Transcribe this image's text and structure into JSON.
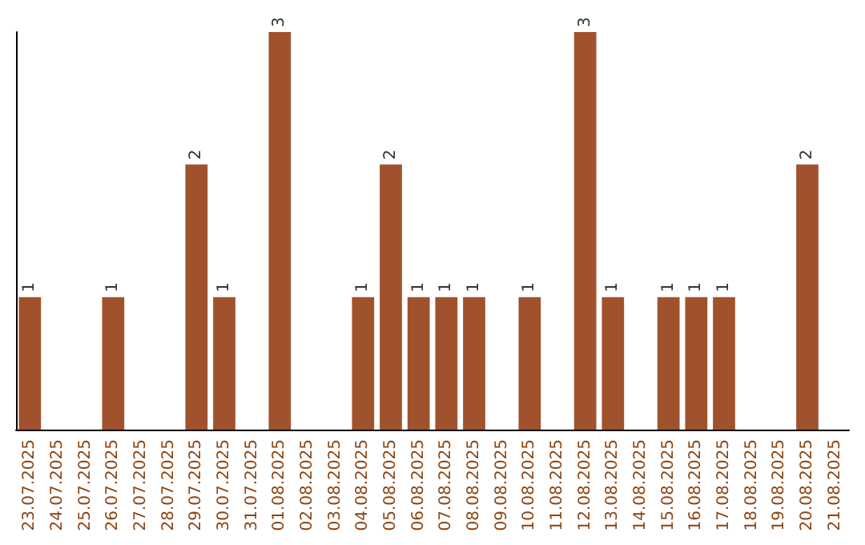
{
  "chart_data": {
    "type": "bar",
    "categories": [
      "23.07.2025",
      "24.07.2025",
      "25.07.2025",
      "26.07.2025",
      "27.07.2025",
      "28.07.2025",
      "29.07.2025",
      "30.07.2025",
      "31.07.2025",
      "01.08.2025",
      "02.08.2025",
      "03.08.2025",
      "04.08.2025",
      "05.08.2025",
      "06.08.2025",
      "07.08.2025",
      "08.08.2025",
      "09.08.2025",
      "10.08.2025",
      "11.08.2025",
      "12.08.2025",
      "13.08.2025",
      "14.08.2025",
      "15.08.2025",
      "16.08.2025",
      "17.08.2025",
      "18.08.2025",
      "19.08.2025",
      "20.08.2025",
      "21.08.2025"
    ],
    "values": [
      1,
      0,
      0,
      1,
      0,
      0,
      2,
      1,
      0,
      3,
      0,
      0,
      1,
      2,
      1,
      1,
      1,
      0,
      1,
      0,
      3,
      1,
      0,
      1,
      1,
      1,
      0,
      0,
      2,
      0
    ],
    "value_labels": [
      "1",
      null,
      null,
      "1",
      null,
      null,
      "2",
      "1",
      null,
      "3",
      null,
      null,
      "1",
      "2",
      "1",
      "1",
      "1",
      null,
      "1",
      null,
      "3",
      "1",
      null,
      "1",
      "1",
      "1",
      null,
      null,
      "2",
      null
    ],
    "color": "#a0522d",
    "tick_labels": "x"
  }
}
